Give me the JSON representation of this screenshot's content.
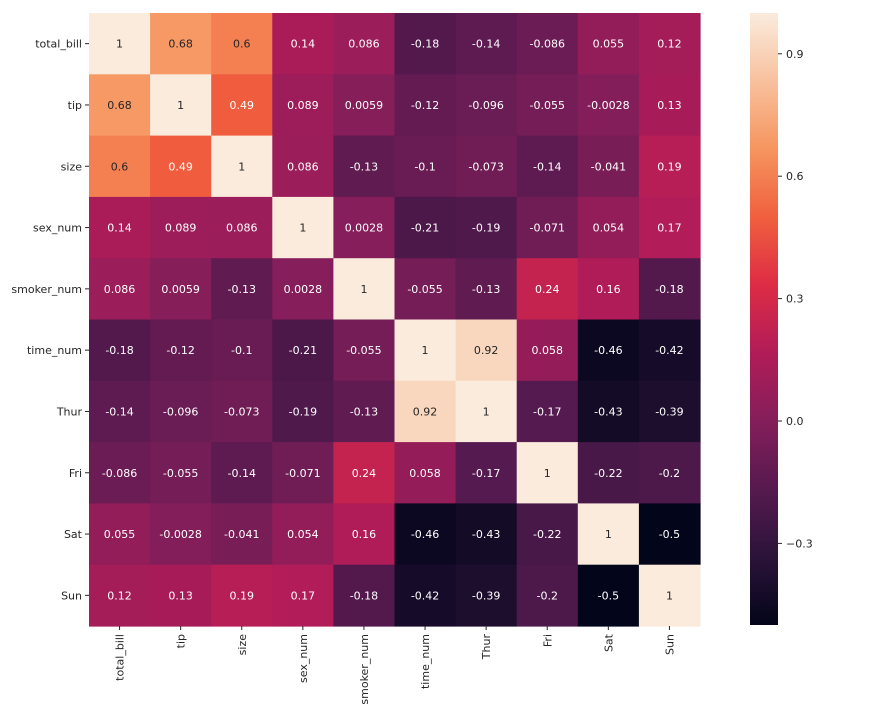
{
  "chart_data": {
    "type": "heatmap",
    "title": "",
    "xlabel": "",
    "ylabel": "",
    "row_labels": [
      "total_bill",
      "tip",
      "size",
      "sex_num",
      "smoker_num",
      "time_num",
      "Thur",
      "Fri",
      "Sat",
      "Sun"
    ],
    "col_labels": [
      "total_bill",
      "tip",
      "size",
      "sex_num",
      "smoker_num",
      "time_num",
      "Thur",
      "Fri",
      "Sat",
      "Sun"
    ],
    "values": [
      [
        1,
        0.68,
        0.6,
        0.14,
        0.086,
        -0.18,
        -0.14,
        -0.086,
        0.055,
        0.12
      ],
      [
        0.68,
        1,
        0.49,
        0.089,
        0.0059,
        -0.12,
        -0.096,
        -0.055,
        -0.0028,
        0.13
      ],
      [
        0.6,
        0.49,
        1,
        0.086,
        -0.13,
        -0.1,
        -0.073,
        -0.14,
        -0.041,
        0.19
      ],
      [
        0.14,
        0.089,
        0.086,
        1,
        0.0028,
        -0.21,
        -0.19,
        -0.071,
        0.054,
        0.17
      ],
      [
        0.086,
        0.0059,
        -0.13,
        0.0028,
        1,
        -0.055,
        -0.13,
        0.24,
        0.16,
        -0.18
      ],
      [
        -0.18,
        -0.12,
        -0.1,
        -0.21,
        -0.055,
        1,
        0.92,
        0.058,
        -0.46,
        -0.42
      ],
      [
        -0.14,
        -0.096,
        -0.073,
        -0.19,
        -0.13,
        0.92,
        1,
        -0.17,
        -0.43,
        -0.39
      ],
      [
        -0.086,
        -0.055,
        -0.14,
        -0.071,
        0.24,
        0.058,
        -0.17,
        1,
        -0.22,
        -0.2
      ],
      [
        0.055,
        -0.0028,
        -0.041,
        0.054,
        0.16,
        -0.46,
        -0.43,
        -0.22,
        1,
        -0.5
      ],
      [
        0.12,
        0.13,
        0.19,
        0.17,
        -0.18,
        -0.42,
        -0.39,
        -0.2,
        -0.5,
        1
      ]
    ],
    "annotations": [
      [
        "1",
        "0.68",
        "0.6",
        "0.14",
        "0.086",
        "-0.18",
        "-0.14",
        "-0.086",
        "0.055",
        "0.12"
      ],
      [
        "0.68",
        "1",
        "0.49",
        "0.089",
        "0.0059",
        "-0.12",
        "-0.096",
        "-0.055",
        "-0.0028",
        "0.13"
      ],
      [
        "0.6",
        "0.49",
        "1",
        "0.086",
        "-0.13",
        "-0.1",
        "-0.073",
        "-0.14",
        "-0.041",
        "0.19"
      ],
      [
        "0.14",
        "0.089",
        "0.086",
        "1",
        "0.0028",
        "-0.21",
        "-0.19",
        "-0.071",
        "0.054",
        "0.17"
      ],
      [
        "0.086",
        "0.0059",
        "-0.13",
        "0.0028",
        "1",
        "-0.055",
        "-0.13",
        "0.24",
        "0.16",
        "-0.18"
      ],
      [
        "-0.18",
        "-0.12",
        "-0.1",
        "-0.21",
        "-0.055",
        "1",
        "0.92",
        "0.058",
        "-0.46",
        "-0.42"
      ],
      [
        "-0.14",
        "-0.096",
        "-0.073",
        "-0.19",
        "-0.13",
        "0.92",
        "1",
        "-0.17",
        "-0.43",
        "-0.39"
      ],
      [
        "-0.086",
        "-0.055",
        "-0.14",
        "-0.071",
        "0.24",
        "0.058",
        "-0.17",
        "1",
        "-0.22",
        "-0.2"
      ],
      [
        "0.055",
        "-0.0028",
        "-0.041",
        "0.054",
        "0.16",
        "-0.46",
        "-0.43",
        "-0.22",
        "1",
        "-0.5"
      ],
      [
        "0.12",
        "0.13",
        "0.19",
        "0.17",
        "-0.18",
        "-0.42",
        "-0.39",
        "-0.2",
        "-0.5",
        "1"
      ]
    ],
    "colorbar": {
      "vmin": -0.5,
      "vmax": 1,
      "ticks": [
        0.9,
        0.6,
        0.3,
        0.0,
        -0.3
      ],
      "tick_labels": [
        "0.9",
        "0.6",
        "0.3",
        "0.0",
        "−0.3"
      ]
    },
    "colormap": "rocket",
    "colormap_stops": [
      "#03051a",
      "#2b1339",
      "#561a4f",
      "#841e5a",
      "#b11c58",
      "#dd2c45",
      "#f0603e",
      "#f6955f",
      "#f8c19e",
      "#faebdd"
    ],
    "x_tick_rotation": 90,
    "grid": false
  }
}
